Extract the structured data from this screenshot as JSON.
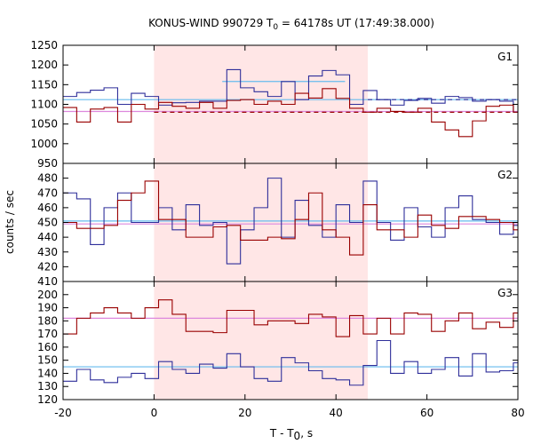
{
  "colors": {
    "red_series": "#990000",
    "blue_series": "#2f2f9a",
    "pink_mean": "#dd88dd",
    "cyan_mean": "#66bbee",
    "shade": "#ffe6e6"
  },
  "chart_data": {
    "type": "line",
    "title_main": "KONUS-WIND 990729 T",
    "title_sub": "0",
    "title_rest": " = 64178s UT (17:49:38.000)",
    "xlabel_main": "T - T",
    "xlabel_sub": "0",
    "xlabel_rest": ", s",
    "ylabel": "counts / sec",
    "xlim": [
      -20,
      80
    ],
    "xticks": [
      "-20",
      "0",
      "20",
      "40",
      "60",
      "80"
    ],
    "xtick_values": [
      -20,
      0,
      20,
      40,
      60,
      80
    ],
    "shade_range": [
      0,
      47
    ],
    "panels": [
      {
        "label": "G1",
        "ylim": [
          950,
          1250
        ],
        "yticks": [
          "950",
          "1000",
          "1050",
          "1100",
          "1150",
          "1200",
          "1250"
        ],
        "ytick_values": [
          950,
          1000,
          1050,
          1100,
          1150,
          1200,
          1250
        ],
        "series": [
          {
            "color": "blue",
            "x": [
              -20,
              -17,
              -14,
              -11,
              -8,
              -5,
              -2,
              1,
              4,
              7,
              10,
              13,
              16,
              19,
              22,
              25,
              28,
              31,
              34,
              37,
              40,
              43,
              46,
              49,
              52,
              55,
              58,
              61,
              64,
              67,
              70,
              73,
              76,
              79,
              80
            ],
            "y": [
              1120,
              1130,
              1136,
              1142,
              1100,
              1128,
              1120,
              1098,
              1104,
              1105,
              1108,
              1108,
              1188,
              1142,
              1132,
              1120,
              1158,
              1112,
              1172,
              1186,
              1175,
              1100,
              1135,
              1112,
              1098,
              1110,
              1115,
              1103,
              1120,
              1117,
              1108,
              1112,
              1108,
              1080,
              1080
            ]
          },
          {
            "color": "red",
            "x": [
              -20,
              -17,
              -14,
              -11,
              -8,
              -5,
              -2,
              1,
              4,
              7,
              10,
              13,
              16,
              19,
              22,
              25,
              28,
              31,
              34,
              37,
              40,
              43,
              46,
              49,
              52,
              55,
              58,
              61,
              64,
              67,
              70,
              73,
              76,
              79,
              80
            ],
            "y": [
              1092,
              1055,
              1088,
              1092,
              1055,
              1100,
              1088,
              1105,
              1095,
              1090,
              1105,
              1090,
              1110,
              1112,
              1100,
              1108,
              1100,
              1128,
              1116,
              1140,
              1115,
              1090,
              1080,
              1090,
              1082,
              1080,
              1090,
              1055,
              1035,
              1018,
              1058,
              1095,
              1098,
              1080,
              1080
            ]
          }
        ],
        "ref_lines": [
          {
            "color": "pink",
            "style": "solid",
            "x0": -20,
            "x1": 80,
            "y": 1082
          },
          {
            "color": "cyan",
            "style": "solid",
            "x0": -20,
            "x1": 80,
            "y": 1112
          },
          {
            "color": "red",
            "style": "dashed",
            "x0": 0,
            "x1": 80,
            "y": 1080
          },
          {
            "color": "blue",
            "style": "dashed",
            "x0": 47,
            "x1": 80,
            "y": 1112
          },
          {
            "color": "cyan",
            "style": "solid",
            "x0": 15,
            "x1": 42,
            "y": 1158
          }
        ]
      },
      {
        "label": "G2",
        "ylim": [
          410,
          490
        ],
        "yticks": [
          "410",
          "420",
          "430",
          "440",
          "450",
          "460",
          "470",
          "480"
        ],
        "ytick_values": [
          410,
          420,
          430,
          440,
          450,
          460,
          470,
          480
        ],
        "series": [
          {
            "color": "blue",
            "x": [
              -20,
              -17,
              -14,
              -11,
              -8,
              -5,
              -2,
              1,
              4,
              7,
              10,
              13,
              16,
              19,
              22,
              25,
              28,
              31,
              34,
              37,
              40,
              43,
              46,
              49,
              52,
              55,
              58,
              61,
              64,
              67,
              70,
              73,
              76,
              79,
              80
            ],
            "y": [
              470,
              466,
              435,
              460,
              470,
              450,
              450,
              460,
              445,
              462,
              448,
              450,
              422,
              445,
              460,
              480,
              440,
              465,
              448,
              440,
              462,
              450,
              478,
              450,
              438,
              460,
              447,
              440,
              460,
              468,
              452,
              450,
              442,
              448,
              448
            ]
          },
          {
            "color": "red",
            "x": [
              -20,
              -17,
              -14,
              -11,
              -8,
              -5,
              -2,
              1,
              4,
              7,
              10,
              13,
              16,
              19,
              22,
              25,
              28,
              31,
              34,
              37,
              40,
              43,
              46,
              49,
              52,
              55,
              58,
              61,
              64,
              67,
              70,
              73,
              76,
              79,
              80
            ],
            "y": [
              450,
              446,
              446,
              448,
              465,
              470,
              478,
              452,
              452,
              440,
              440,
              447,
              448,
              438,
              438,
              440,
              439,
              452,
              470,
              445,
              440,
              428,
              462,
              445,
              445,
              440,
              455,
              448,
              446,
              454,
              454,
              452,
              450,
              445,
              445
            ]
          }
        ],
        "ref_lines": [
          {
            "color": "pink",
            "style": "solid",
            "x0": -20,
            "x1": 80,
            "y": 449
          },
          {
            "color": "cyan",
            "style": "solid",
            "x0": -20,
            "x1": 80,
            "y": 451
          }
        ]
      },
      {
        "label": "G3",
        "ylim": [
          120,
          210
        ],
        "yticks": [
          "120",
          "130",
          "140",
          "150",
          "160",
          "170",
          "180",
          "190",
          "200"
        ],
        "ytick_values": [
          120,
          130,
          140,
          150,
          160,
          170,
          180,
          190,
          200
        ],
        "series": [
          {
            "color": "blue",
            "x": [
              -20,
              -17,
              -14,
              -11,
              -8,
              -5,
              -2,
              1,
              4,
              7,
              10,
              13,
              16,
              19,
              22,
              25,
              28,
              31,
              34,
              37,
              40,
              43,
              46,
              49,
              52,
              55,
              58,
              61,
              64,
              67,
              70,
              73,
              76,
              79,
              80
            ],
            "y": [
              134,
              143,
              135,
              133,
              137,
              140,
              136,
              149,
              143,
              140,
              147,
              144,
              155,
              145,
              136,
              134,
              152,
              148,
              142,
              136,
              135,
              131,
              146,
              165,
              140,
              149,
              140,
              143,
              152,
              138,
              155,
              141,
              142,
              148,
              148
            ]
          },
          {
            "color": "red",
            "x": [
              -20,
              -17,
              -14,
              -11,
              -8,
              -5,
              -2,
              1,
              4,
              7,
              10,
              13,
              16,
              19,
              22,
              25,
              28,
              31,
              34,
              37,
              40,
              43,
              46,
              49,
              52,
              55,
              58,
              61,
              64,
              67,
              70,
              73,
              76,
              79,
              80
            ],
            "y": [
              170,
              182,
              186,
              190,
              186,
              182,
              190,
              196,
              185,
              172,
              172,
              171,
              188,
              188,
              177,
              180,
              180,
              178,
              185,
              183,
              168,
              184,
              170,
              182,
              170,
              186,
              185,
              172,
              180,
              186,
              174,
              179,
              175,
              186,
              186
            ]
          }
        ],
        "ref_lines": [
          {
            "color": "pink",
            "style": "solid",
            "x0": -20,
            "x1": 80,
            "y": 182
          },
          {
            "color": "cyan",
            "style": "solid",
            "x0": -20,
            "x1": 80,
            "y": 145
          }
        ]
      }
    ]
  }
}
